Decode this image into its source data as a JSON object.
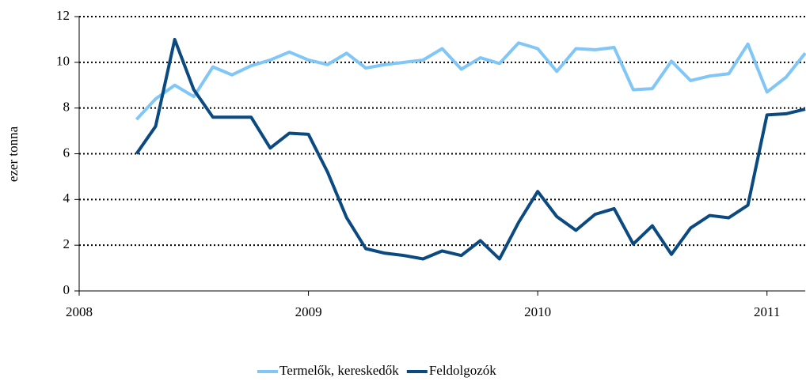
{
  "chart_data": {
    "type": "line",
    "y_label": "ezer tonna",
    "x": [
      2008.25,
      2008.3333,
      2008.4167,
      2008.5,
      2008.5833,
      2008.6667,
      2008.75,
      2008.8333,
      2008.9167,
      2009,
      2009.0833,
      2009.1667,
      2009.25,
      2009.3333,
      2009.4167,
      2009.5,
      2009.5833,
      2009.6667,
      2009.75,
      2009.8333,
      2009.9167,
      2010,
      2010.0833,
      2010.1667,
      2010.25,
      2010.3333,
      2010.4167,
      2010.5,
      2010.5833,
      2010.6667,
      2010.75,
      2010.8333,
      2010.9167,
      2011,
      2011.0833,
      2011.1667
    ],
    "series": [
      {
        "name": "Termelők, kereskedők",
        "color": "#80c6f6",
        "values": [
          7.5,
          8.4,
          9.0,
          8.5,
          9.8,
          9.45,
          9.85,
          10.1,
          10.45,
          10.1,
          9.9,
          10.4,
          9.75,
          9.9,
          10.0,
          10.1,
          10.6,
          9.7,
          10.2,
          9.95,
          10.85,
          10.6,
          9.6,
          10.6,
          10.55,
          10.65,
          8.8,
          8.85,
          10.05,
          9.2,
          9.4,
          9.5,
          10.8,
          8.7,
          9.35,
          10.4
        ]
      },
      {
        "name": "Feldolgozók",
        "color": "#0b4a80",
        "values": [
          6.0,
          7.2,
          11.0,
          8.8,
          7.6,
          7.6,
          7.6,
          6.25,
          6.9,
          6.85,
          5.2,
          3.2,
          1.85,
          1.65,
          1.55,
          1.4,
          1.75,
          1.55,
          2.2,
          1.4,
          3.0,
          4.35,
          3.25,
          2.65,
          3.35,
          3.6,
          2.05,
          2.85,
          1.6,
          2.75,
          3.3,
          3.2,
          3.75,
          7.7,
          7.75,
          7.95
        ]
      }
    ],
    "xlim": [
      2008,
      2011.1667
    ],
    "xticks": [
      2008,
      2009,
      2010,
      2011
    ],
    "ylim": [
      0,
      12
    ],
    "yticks": [
      0,
      2,
      4,
      6,
      8,
      10,
      12
    ],
    "grid": true,
    "legend": "bottom"
  }
}
